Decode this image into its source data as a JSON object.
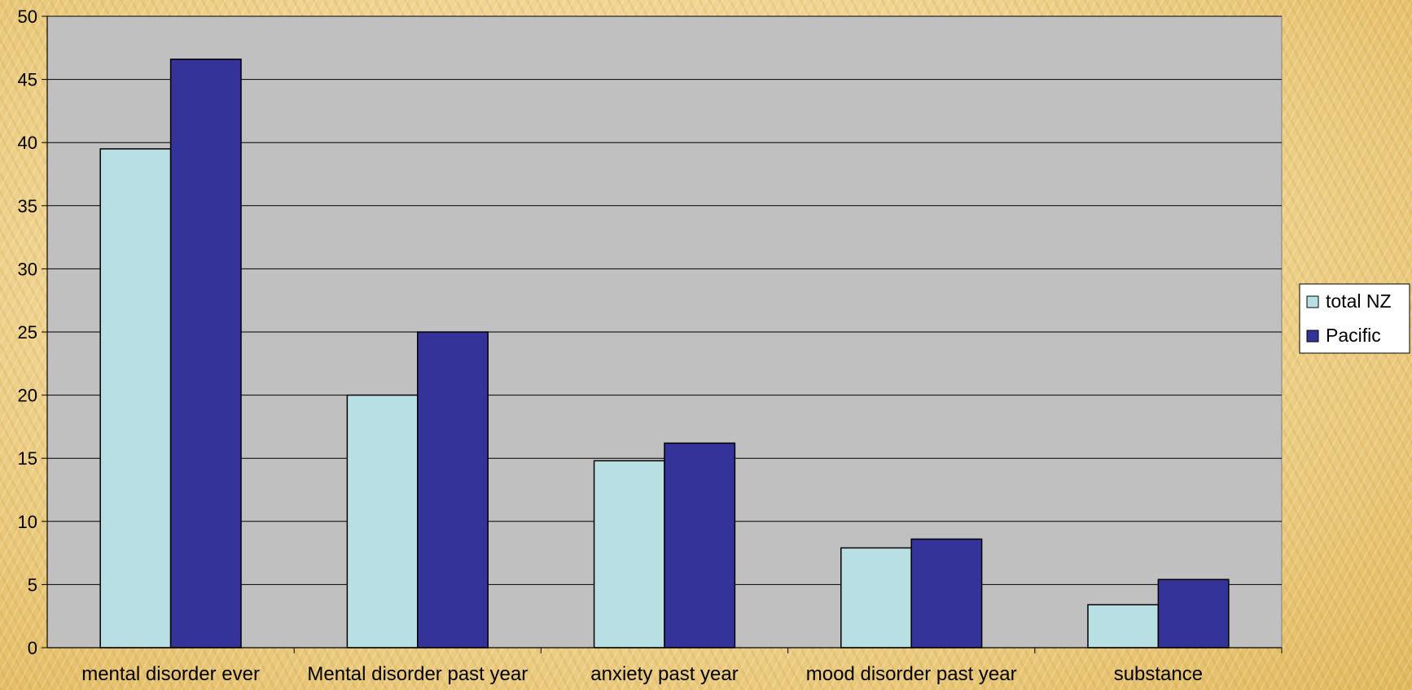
{
  "chart_data": {
    "type": "bar",
    "categories": [
      "mental disorder ever",
      "Mental disorder past year",
      "anxiety past year",
      "mood disorder past year",
      "substance"
    ],
    "series": [
      {
        "name": "total NZ",
        "values": [
          39.5,
          20.0,
          14.8,
          7.9,
          3.4
        ],
        "color": "#b8dfe3"
      },
      {
        "name": "Pacific",
        "values": [
          46.6,
          25.0,
          16.2,
          8.6,
          5.4
        ],
        "color": "#333399"
      }
    ],
    "ylim": [
      0,
      50
    ],
    "yticks": [
      "0",
      "5",
      "10",
      "15",
      "20",
      "25",
      "30",
      "35",
      "40",
      "45",
      "50"
    ],
    "grid": true,
    "legend_position": "right",
    "plot_background": "#c0c0c0"
  }
}
